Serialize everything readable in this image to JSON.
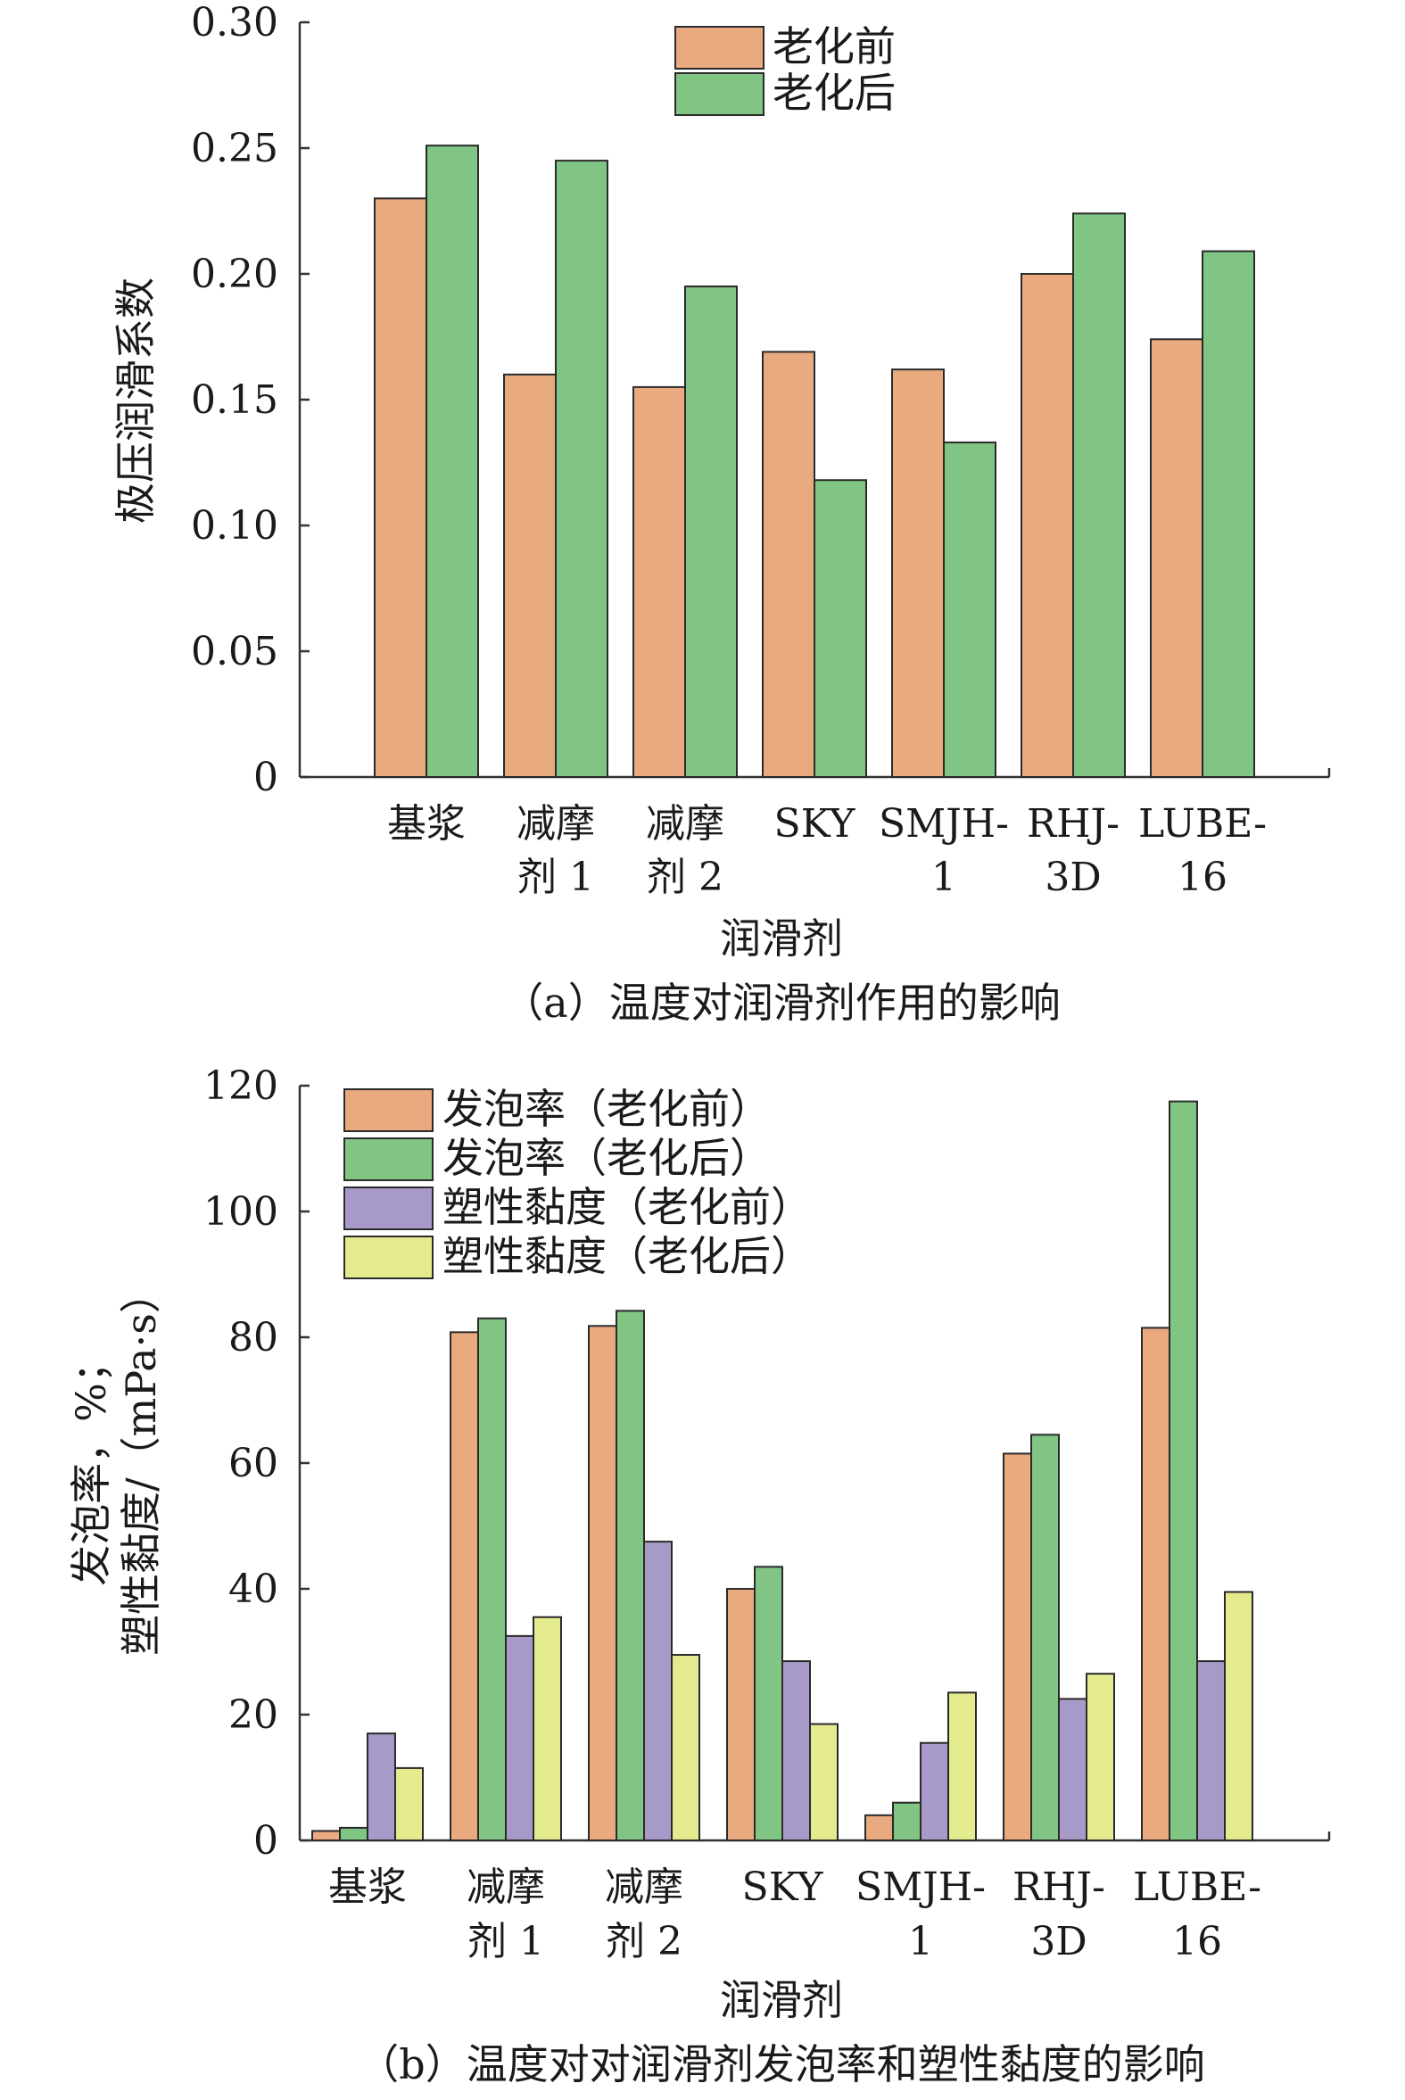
{
  "colors": {
    "before_foam": "#e9aa80",
    "after_foam": "#80c583",
    "before_pv": "#a89ac8",
    "after_pv": "#e4ea8e",
    "axis": "#333333",
    "bar_stroke": "#2a2a2a"
  },
  "chart_data": [
    {
      "id": "a",
      "type": "bar",
      "caption": "（a）温度对润滑剂作用的影响",
      "xlabel": "润滑剂",
      "ylabel": "极压润滑系数",
      "ylim": [
        0,
        0.3
      ],
      "yticks": [
        {
          "value": 0,
          "label": "0"
        },
        {
          "value": 0.05,
          "label": "0.05"
        },
        {
          "value": 0.1,
          "label": "0.10"
        },
        {
          "value": 0.15,
          "label": "0.15"
        },
        {
          "value": 0.2,
          "label": "0.20"
        },
        {
          "value": 0.25,
          "label": "0.25"
        },
        {
          "value": 0.3,
          "label": "0.30"
        }
      ],
      "categories": [
        {
          "line1": "基浆",
          "line2": ""
        },
        {
          "line1": "减摩",
          "line2": "剂 1"
        },
        {
          "line1": "减摩",
          "line2": "剂 2"
        },
        {
          "line1": "SKY",
          "line2": ""
        },
        {
          "line1": "SMJH-",
          "line2": "1"
        },
        {
          "line1": "RHJ-",
          "line2": "3D"
        },
        {
          "line1": "LUBE-",
          "line2": "16"
        }
      ],
      "series": [
        {
          "name": "老化前",
          "color": "#e9aa80",
          "values": [
            0.23,
            0.16,
            0.155,
            0.169,
            0.162,
            0.2,
            0.174
          ]
        },
        {
          "name": "老化后",
          "color": "#80c583",
          "values": [
            0.251,
            0.245,
            0.195,
            0.118,
            0.133,
            0.224,
            0.209
          ]
        }
      ],
      "legend_position": "top-center"
    },
    {
      "id": "b",
      "type": "bar",
      "caption": "（b）温度对对润滑剂发泡率和塑性黏度的影响",
      "xlabel": "润滑剂",
      "ylabel_line1": "发泡率，%；",
      "ylabel_line2": "塑性黏度/（mPa·s）",
      "ylim": [
        0,
        120
      ],
      "yticks": [
        {
          "value": 0,
          "label": "0"
        },
        {
          "value": 20,
          "label": "20"
        },
        {
          "value": 40,
          "label": "40"
        },
        {
          "value": 60,
          "label": "60"
        },
        {
          "value": 80,
          "label": "80"
        },
        {
          "value": 100,
          "label": "100"
        },
        {
          "value": 120,
          "label": "120"
        }
      ],
      "categories": [
        {
          "line1": "基浆",
          "line2": ""
        },
        {
          "line1": "减摩",
          "line2": "剂 1"
        },
        {
          "line1": "减摩",
          "line2": "剂 2"
        },
        {
          "line1": "SKY",
          "line2": ""
        },
        {
          "line1": "SMJH-",
          "line2": "1"
        },
        {
          "line1": "RHJ-",
          "line2": "3D"
        },
        {
          "line1": "LUBE-",
          "line2": "16"
        }
      ],
      "series": [
        {
          "name": "发泡率（老化前）",
          "color": "#e9aa80",
          "values": [
            1.5,
            80.8,
            81.8,
            40.0,
            4.0,
            61.5,
            81.5
          ]
        },
        {
          "name": "发泡率（老化后）",
          "color": "#80c583",
          "values": [
            2.0,
            83.0,
            84.2,
            43.5,
            6.0,
            64.5,
            117.5
          ]
        },
        {
          "name": "塑性黏度（老化前）",
          "color": "#a89ac8",
          "values": [
            17.0,
            32.5,
            47.5,
            28.5,
            15.5,
            22.5,
            28.5
          ]
        },
        {
          "name": "塑性黏度（老化后）",
          "color": "#e4ea8e",
          "values": [
            11.5,
            35.5,
            29.5,
            18.5,
            23.5,
            26.5,
            39.5
          ]
        }
      ],
      "legend_position": "top-left"
    }
  ]
}
